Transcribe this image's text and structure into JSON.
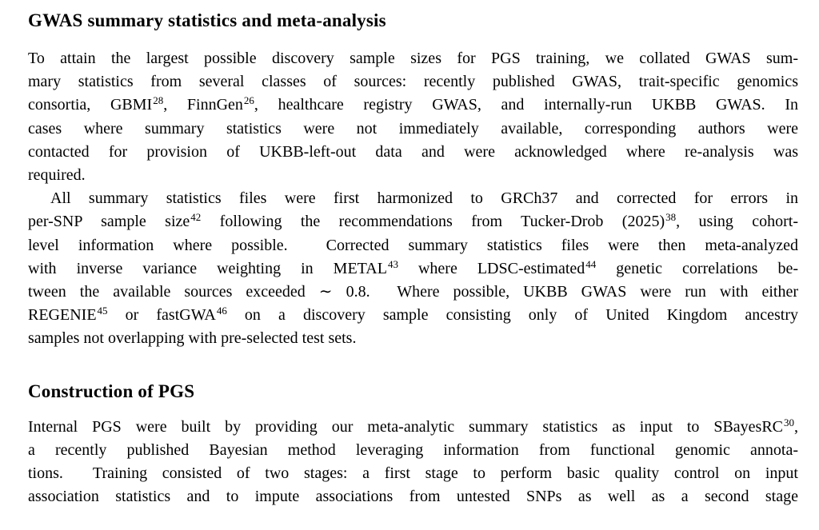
{
  "page": {
    "background": "#ffffff",
    "text_color": "#000000"
  },
  "sections": [
    {
      "heading": "GWAS summary statistics and meta-analysis",
      "paragraphs": [
        {
          "indent": false,
          "lines": [
            {
              "text": "To attain the largest possible discovery sample sizes for PGS training, we collated GWAS sum-",
              "justify": true
            },
            {
              "text": "mary statistics from several classes of sources: recently published GWAS, trait-specific genomics",
              "justify": true
            },
            {
              "text": "consortia, GBMI^{28}, FinnGen^{26}, healthcare registry GWAS, and internally-run UKBB GWAS. In",
              "justify": true
            },
            {
              "text": "cases where summary statistics were not immediately available, corresponding authors were",
              "justify": true
            },
            {
              "text": "contacted for provision of UKBB-left-out data and were acknowledged where re-analysis was",
              "justify": true
            },
            {
              "text": "required.",
              "justify": false
            }
          ]
        },
        {
          "indent": true,
          "lines": [
            {
              "text": "All summary statistics files were first harmonized to GRCh37 and corrected for errors in",
              "justify": true
            },
            {
              "text": "per-SNP sample size^{42} following the recommendations from Tucker-Drob (2025)^{38}, using cohort-",
              "justify": true
            },
            {
              "text": "level information where possible.  Corrected summary statistics files were then meta-analyzed",
              "justify": true
            },
            {
              "text": "with inverse variance weighting in METAL^{43} where LDSC-estimated^{44} genetic correlations be-",
              "justify": true
            },
            {
              "text": "tween the available sources exceeded ∼ 0.8.  Where possible, UKBB GWAS were run with either",
              "justify": true
            },
            {
              "text": "REGENIE^{45} or fastGWA^{46} on a discovery sample consisting only of United Kingdom ancestry",
              "justify": true
            },
            {
              "text": "samples not overlapping with pre-selected test sets.",
              "justify": false
            }
          ]
        }
      ]
    },
    {
      "heading": "Construction of PGS",
      "paragraphs": [
        {
          "indent": false,
          "lines": [
            {
              "text": "Internal PGS were built by providing our meta-analytic summary statistics as input to SBayesRC^{30},",
              "justify": true
            },
            {
              "text": "a recently published Bayesian method leveraging information from functional genomic annota-",
              "justify": true
            },
            {
              "text": "tions.  Training consisted of two stages: a first stage to perform basic quality control on input",
              "justify": true
            },
            {
              "text": "association statistics and to impute associations from untested SNPs as well as a second stage",
              "justify": true
            }
          ]
        }
      ]
    }
  ]
}
